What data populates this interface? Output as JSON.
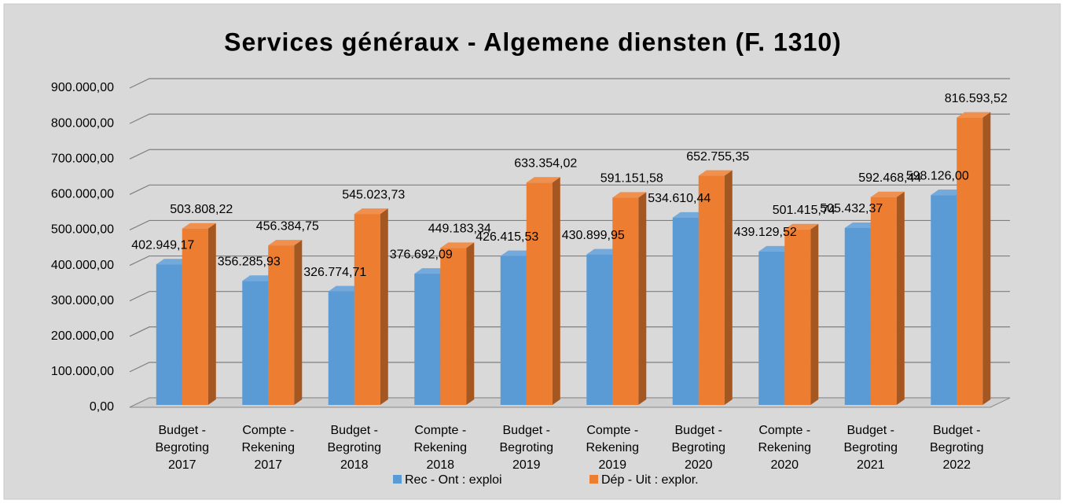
{
  "chart_data": {
    "type": "bar3d",
    "title": "Services généraux - Algemene diensten (F. 1310)",
    "categories": [
      "Budget - Begroting 2017",
      "Compte - Rekening 2017",
      "Budget - Begroting 2018",
      "Compte - Rekening 2018",
      "Budget - Begroting 2019",
      "Compte - Rekening 2019",
      "Budget - Begroting 2020",
      "Compte - Rekening 2020",
      "Budget - Begroting 2021",
      "Budget - Begroting 2022"
    ],
    "series": [
      {
        "name": "Rec - Ont : exploi",
        "color": "#5b9bd5",
        "values": [
          402949.17,
          356285.93,
          326774.71,
          376692.09,
          426415.53,
          430899.95,
          534610.44,
          439129.52,
          505432.37,
          598126.0
        ],
        "value_labels": [
          "402.949,17",
          "356.285,93",
          "326.774,71",
          "376.692,09",
          "426.415,53",
          "430.899,95",
          "534.610,44",
          "439.129,52",
          "505.432,37",
          "598.126,00"
        ]
      },
      {
        "name": "Dép - Uit : explor.",
        "color": "#ed7d31",
        "values": [
          503808.22,
          456384.75,
          545023.73,
          449183.34,
          633354.02,
          591151.58,
          652755.35,
          501415.74,
          592468.44,
          816593.52
        ],
        "value_labels": [
          "503.808,22",
          "456.384,75",
          "545.023,73",
          "449.183,34",
          "633.354,02",
          "591.151,58",
          "652.755,35",
          "501.415,74",
          "592.468,44",
          "816.593,52"
        ]
      }
    ],
    "ylim": [
      0,
      900000
    ],
    "yticks": [
      {
        "value": 0,
        "label": "0,00"
      },
      {
        "value": 100000,
        "label": "100.000,00"
      },
      {
        "value": 200000,
        "label": "200.000,00"
      },
      {
        "value": 300000,
        "label": "300.000,00"
      },
      {
        "value": 400000,
        "label": "400.000,00"
      },
      {
        "value": 500000,
        "label": "500.000,00"
      },
      {
        "value": 600000,
        "label": "600.000,00"
      },
      {
        "value": 700000,
        "label": "700.000,00"
      },
      {
        "value": 800000,
        "label": "800.000,00"
      },
      {
        "value": 900000,
        "label": "900.000,00"
      }
    ],
    "grid": true,
    "legend": "bottom"
  }
}
